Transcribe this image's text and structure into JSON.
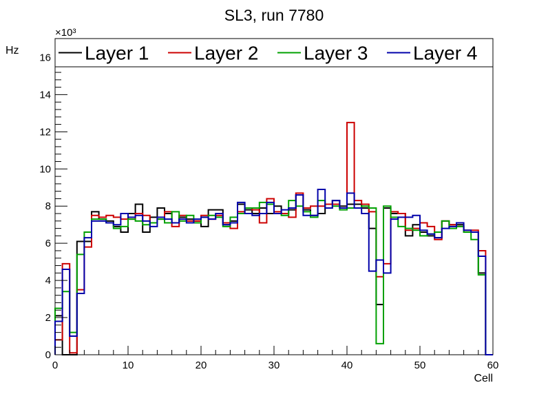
{
  "chart_data": {
    "type": "histogram",
    "title": "SL3, run 7780",
    "xlabel": "Cell",
    "ylabel": "Hz",
    "y_multiplier_label": "×10³",
    "xlim": [
      0,
      60
    ],
    "ylim": [
      0,
      16.5
    ],
    "x_ticks": [
      0,
      10,
      20,
      30,
      40,
      50,
      60
    ],
    "y_ticks": [
      0,
      2,
      4,
      6,
      8,
      10,
      12,
      14,
      16
    ],
    "legend_position": "top",
    "series": [
      {
        "name": "Layer 1",
        "color": "#000000",
        "values": [
          2.1,
          0,
          0,
          6.1,
          6.1,
          7.7,
          7.3,
          7.2,
          6.9,
          6.6,
          7.6,
          8.1,
          6.6,
          7.4,
          7.9,
          7.6,
          7.1,
          7.4,
          7.3,
          7.2,
          6.9,
          7.8,
          7.8,
          7.0,
          7.2,
          8.1,
          7.8,
          7.6,
          7.9,
          7.6,
          8.0,
          7.6,
          7.8,
          8.6,
          7.8,
          7.5,
          7.6,
          8.1,
          8.3,
          8.0,
          8.1,
          8.1,
          7.9,
          6.8,
          2.7,
          7.9,
          7.6,
          7.6,
          6.4,
          7.0,
          6.6,
          6.4,
          6.3,
          7.2,
          7.0,
          7.0,
          6.6,
          6.6,
          4.4,
          0
        ]
      },
      {
        "name": "Layer 2",
        "color": "#cc0000",
        "values": [
          0.8,
          4.9,
          0.1,
          3.5,
          5.8,
          7.5,
          7.4,
          7.5,
          7.4,
          7.3,
          7.3,
          7.6,
          7.5,
          7.1,
          7.3,
          7.7,
          6.9,
          7.5,
          7.2,
          7.2,
          7.5,
          7.3,
          7.5,
          7.1,
          6.8,
          7.7,
          7.9,
          7.8,
          7.1,
          8.4,
          7.7,
          7.6,
          7.4,
          8.7,
          7.9,
          8.0,
          8.0,
          8.1,
          8.1,
          7.9,
          12.5,
          8.3,
          8.1,
          7.7,
          4.2,
          4.9,
          7.7,
          7.6,
          6.7,
          6.8,
          7.1,
          6.9,
          6.2,
          7.2,
          7.0,
          6.9,
          6.7,
          6.7,
          5.6,
          0
        ]
      },
      {
        "name": "Layer 3",
        "color": "#00a000",
        "values": [
          2.5,
          3.4,
          1.2,
          5.4,
          6.6,
          7.3,
          7.3,
          7.1,
          6.8,
          6.9,
          7.3,
          7.2,
          7.0,
          7.1,
          7.3,
          7.1,
          7.7,
          7.2,
          7.5,
          7.1,
          7.4,
          7.5,
          7.4,
          6.9,
          7.4,
          7.6,
          7.9,
          7.9,
          8.2,
          8.1,
          7.6,
          7.5,
          8.3,
          8.0,
          7.7,
          7.4,
          8.3,
          7.9,
          8.0,
          7.8,
          7.9,
          7.9,
          8.0,
          7.9,
          0.6,
          8.0,
          7.4,
          6.9,
          6.8,
          6.7,
          6.4,
          6.5,
          6.6,
          7.2,
          6.8,
          6.9,
          6.6,
          6.2,
          4.3,
          0
        ]
      },
      {
        "name": "Layer 4",
        "color": "#0000aa",
        "values": [
          1.8,
          4.6,
          1.0,
          3.3,
          6.3,
          7.2,
          7.2,
          7.1,
          7.0,
          7.6,
          7.4,
          7.5,
          7.2,
          6.9,
          7.4,
          7.3,
          7.1,
          7.3,
          7.1,
          7.3,
          7.4,
          7.3,
          7.6,
          7.0,
          7.1,
          8.2,
          7.6,
          7.5,
          7.6,
          8.2,
          7.6,
          7.8,
          7.9,
          8.6,
          7.5,
          7.5,
          8.9,
          7.9,
          8.3,
          7.9,
          8.7,
          7.9,
          7.6,
          4.5,
          5.1,
          4.4,
          7.3,
          7.4,
          7.4,
          7.5,
          6.7,
          6.5,
          6.3,
          6.8,
          6.9,
          7.1,
          6.7,
          6.6,
          5.3,
          0
        ]
      }
    ]
  }
}
